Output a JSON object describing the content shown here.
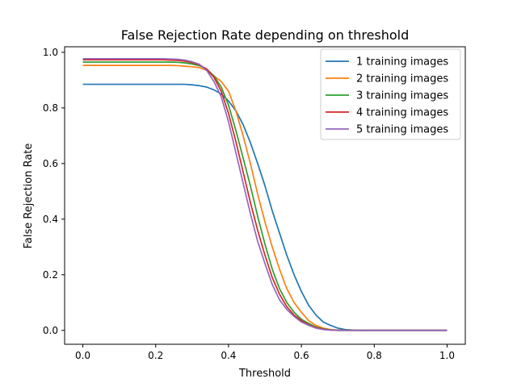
{
  "chart_data": {
    "type": "line",
    "title": "False Rejection Rate depending on threshold",
    "xlabel": "Threshold",
    "ylabel": "False Rejection Rate",
    "xlim": [
      -0.05,
      1.05
    ],
    "ylim": [
      -0.05,
      1.02
    ],
    "xticks": [
      0.0,
      0.2,
      0.4,
      0.6,
      0.8,
      1.0
    ],
    "xtick_labels": [
      "0.0",
      "0.2",
      "0.4",
      "0.6",
      "0.8",
      "1.0"
    ],
    "yticks": [
      0.0,
      0.2,
      0.4,
      0.6,
      0.8,
      1.0
    ],
    "ytick_labels": [
      "0.0",
      "0.2",
      "0.4",
      "0.6",
      "0.8",
      "1.0"
    ],
    "grid": false,
    "legend_position": "top-right",
    "x": [
      0.0,
      0.02,
      0.04,
      0.06,
      0.08,
      0.1,
      0.12,
      0.14,
      0.16,
      0.18,
      0.2,
      0.22,
      0.24,
      0.26,
      0.28,
      0.3,
      0.32,
      0.34,
      0.36,
      0.38,
      0.4,
      0.42,
      0.44,
      0.46,
      0.48,
      0.5,
      0.52,
      0.54,
      0.56,
      0.58,
      0.6,
      0.62,
      0.64,
      0.66,
      0.68,
      0.7,
      0.72,
      0.74,
      0.76,
      0.78,
      0.8,
      0.82,
      0.84,
      0.86,
      0.88,
      0.9,
      0.92,
      0.94,
      0.96,
      0.98,
      1.0
    ],
    "series": [
      {
        "name": "1 training images",
        "color": "#1f77b4",
        "values": [
          0.885,
          0.885,
          0.885,
          0.885,
          0.885,
          0.885,
          0.885,
          0.885,
          0.885,
          0.885,
          0.885,
          0.885,
          0.885,
          0.885,
          0.885,
          0.883,
          0.88,
          0.875,
          0.865,
          0.85,
          0.825,
          0.79,
          0.74,
          0.675,
          0.6,
          0.52,
          0.43,
          0.35,
          0.27,
          0.2,
          0.14,
          0.09,
          0.055,
          0.03,
          0.018,
          0.008,
          0.003,
          0.001,
          0.0,
          0.0,
          0.0,
          0.0,
          0.0,
          0.0,
          0.0,
          0.0,
          0.0,
          0.0,
          0.0,
          0.0,
          0.0
        ]
      },
      {
        "name": "2 training images",
        "color": "#ff7f0e",
        "values": [
          0.953,
          0.953,
          0.953,
          0.953,
          0.953,
          0.953,
          0.953,
          0.953,
          0.953,
          0.953,
          0.953,
          0.953,
          0.953,
          0.952,
          0.95,
          0.948,
          0.945,
          0.935,
          0.915,
          0.895,
          0.86,
          0.79,
          0.7,
          0.6,
          0.49,
          0.39,
          0.3,
          0.22,
          0.15,
          0.1,
          0.065,
          0.035,
          0.018,
          0.008,
          0.003,
          0.001,
          0.0,
          0.0,
          0.0,
          0.0,
          0.0,
          0.0,
          0.0,
          0.0,
          0.0,
          0.0,
          0.0,
          0.0,
          0.0,
          0.0,
          0.0
        ]
      },
      {
        "name": "3 training images",
        "color": "#2ca02c",
        "values": [
          0.965,
          0.965,
          0.965,
          0.965,
          0.965,
          0.965,
          0.965,
          0.965,
          0.965,
          0.965,
          0.965,
          0.965,
          0.965,
          0.964,
          0.962,
          0.958,
          0.952,
          0.94,
          0.915,
          0.875,
          0.81,
          0.72,
          0.62,
          0.52,
          0.41,
          0.31,
          0.22,
          0.15,
          0.1,
          0.065,
          0.04,
          0.025,
          0.012,
          0.005,
          0.002,
          0.0,
          0.0,
          0.0,
          0.0,
          0.0,
          0.0,
          0.0,
          0.0,
          0.0,
          0.0,
          0.0,
          0.0,
          0.0,
          0.0,
          0.0,
          0.0
        ]
      },
      {
        "name": "4 training images",
        "color": "#d62728",
        "values": [
          0.973,
          0.973,
          0.973,
          0.973,
          0.973,
          0.973,
          0.973,
          0.973,
          0.973,
          0.973,
          0.973,
          0.973,
          0.972,
          0.971,
          0.968,
          0.963,
          0.955,
          0.94,
          0.91,
          0.86,
          0.78,
          0.68,
          0.57,
          0.46,
          0.36,
          0.27,
          0.19,
          0.13,
          0.085,
          0.055,
          0.035,
          0.02,
          0.01,
          0.004,
          0.001,
          0.0,
          0.0,
          0.0,
          0.0,
          0.0,
          0.0,
          0.0,
          0.0,
          0.0,
          0.0,
          0.0,
          0.0,
          0.0,
          0.0,
          0.0,
          0.0
        ]
      },
      {
        "name": "5 training images",
        "color": "#9467bd",
        "values": [
          0.977,
          0.977,
          0.977,
          0.977,
          0.977,
          0.977,
          0.977,
          0.977,
          0.977,
          0.977,
          0.977,
          0.977,
          0.976,
          0.975,
          0.972,
          0.966,
          0.957,
          0.935,
          0.895,
          0.84,
          0.75,
          0.64,
          0.53,
          0.42,
          0.32,
          0.24,
          0.165,
          0.11,
          0.075,
          0.05,
          0.03,
          0.018,
          0.008,
          0.003,
          0.001,
          0.0,
          0.0,
          0.0,
          0.0,
          0.0,
          0.0,
          0.0,
          0.0,
          0.0,
          0.0,
          0.0,
          0.0,
          0.0,
          0.0,
          0.0,
          0.0
        ]
      }
    ]
  }
}
